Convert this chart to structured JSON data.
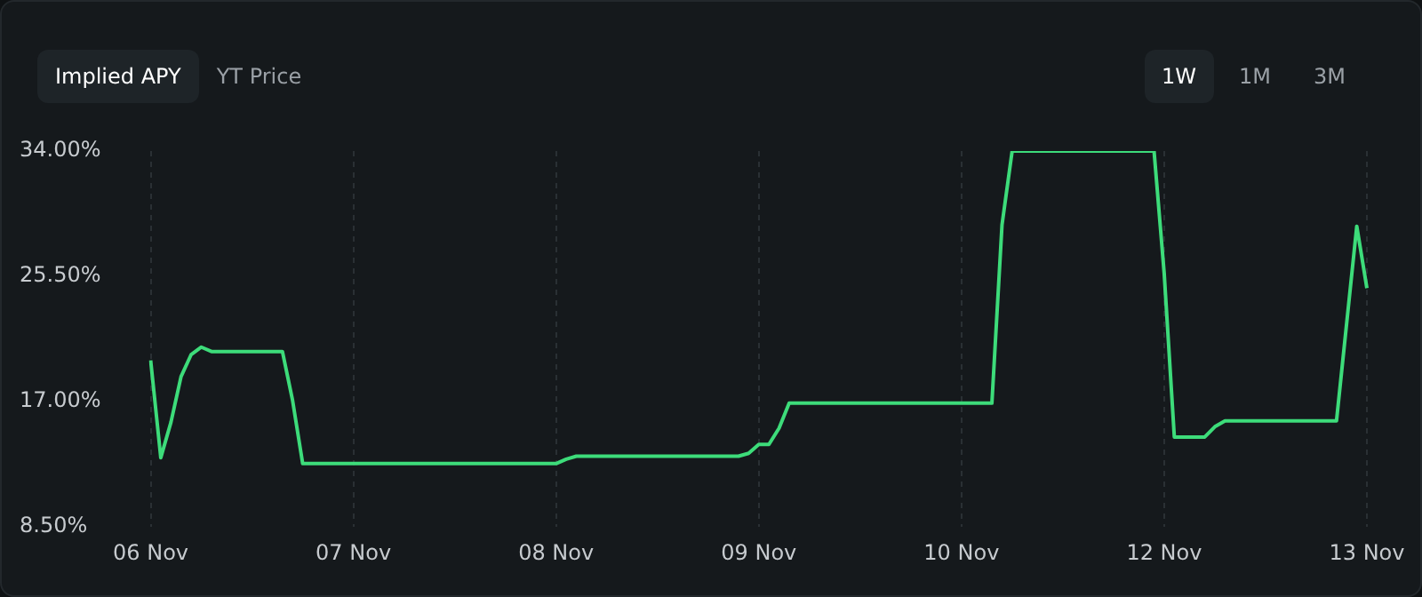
{
  "chart_data": {
    "type": "line",
    "title": "Implied APY",
    "annotations": [
      "YT Price",
      "1W",
      "1M",
      "3M"
    ],
    "categories": [
      "06 Nov",
      null,
      null,
      null,
      null,
      null,
      null,
      null,
      null,
      null,
      null,
      null,
      null,
      null,
      null,
      null,
      null,
      null,
      null,
      null,
      "07 Nov",
      null,
      null,
      null,
      null,
      null,
      null,
      null,
      null,
      null,
      null,
      null,
      null,
      null,
      null,
      null,
      null,
      null,
      null,
      null,
      "08 Nov",
      null,
      null,
      null,
      null,
      null,
      null,
      null,
      null,
      null,
      null,
      null,
      null,
      null,
      null,
      null,
      null,
      null,
      null,
      null,
      "09 Nov",
      null,
      null,
      null,
      null,
      null,
      null,
      null,
      null,
      null,
      null,
      null,
      null,
      null,
      null,
      null,
      null,
      null,
      null,
      null,
      "10 Nov",
      null,
      null,
      null,
      null,
      null,
      null,
      null,
      null,
      null,
      null,
      null,
      null,
      null,
      null,
      null,
      null,
      null,
      null,
      null,
      "12 Nov",
      null,
      null,
      null,
      null,
      null,
      null,
      null,
      null,
      null,
      null,
      null,
      null,
      null,
      null,
      null,
      null,
      null,
      null,
      null,
      "13 Nov"
    ],
    "series": [
      {
        "color": "#3ddc7a",
        "values": [
          19.8,
          13.2,
          15.6,
          18.7,
          20.2,
          20.7,
          20.4,
          20.4,
          20.4,
          20.4,
          20.4,
          20.4,
          20.4,
          20.4,
          17.1,
          12.8,
          12.8,
          12.8,
          12.8,
          12.8,
          12.8,
          12.8,
          12.8,
          12.8,
          12.8,
          12.8,
          12.8,
          12.8,
          12.8,
          12.8,
          12.8,
          12.8,
          12.8,
          12.8,
          12.8,
          12.8,
          12.8,
          12.8,
          12.8,
          12.8,
          12.8,
          13.1,
          13.3,
          13.3,
          13.3,
          13.3,
          13.3,
          13.3,
          13.3,
          13.3,
          13.3,
          13.3,
          13.3,
          13.3,
          13.3,
          13.3,
          13.3,
          13.3,
          13.3,
          13.5,
          14.1,
          14.1,
          15.2,
          16.9,
          16.9,
          16.9,
          16.9,
          16.9,
          16.9,
          16.9,
          16.9,
          16.9,
          16.9,
          16.9,
          16.9,
          16.9,
          16.9,
          16.9,
          16.9,
          16.9,
          16.9,
          16.9,
          16.9,
          16.9,
          29.0,
          34.0,
          34.0,
          34.0,
          34.0,
          34.0,
          34.0,
          34.0,
          34.0,
          34.0,
          34.0,
          34.0,
          34.0,
          34.0,
          34.0,
          34.0,
          25.7,
          14.6,
          14.6,
          14.6,
          14.6,
          15.3,
          15.7,
          15.7,
          15.7,
          15.7,
          15.7,
          15.7,
          15.7,
          15.7,
          15.7,
          15.7,
          15.7,
          15.7,
          22.3,
          28.9,
          24.7
        ]
      }
    ],
    "ylim": [
      8.5,
      34
    ],
    "yticks": [
      {
        "value": 8.5,
        "label": "8.50%"
      },
      {
        "value": 17,
        "label": "17.00%"
      },
      {
        "value": 25.5,
        "label": "25.50%"
      },
      {
        "value": 34,
        "label": "34.00%"
      }
    ],
    "grid": "x",
    "legend": false
  }
}
